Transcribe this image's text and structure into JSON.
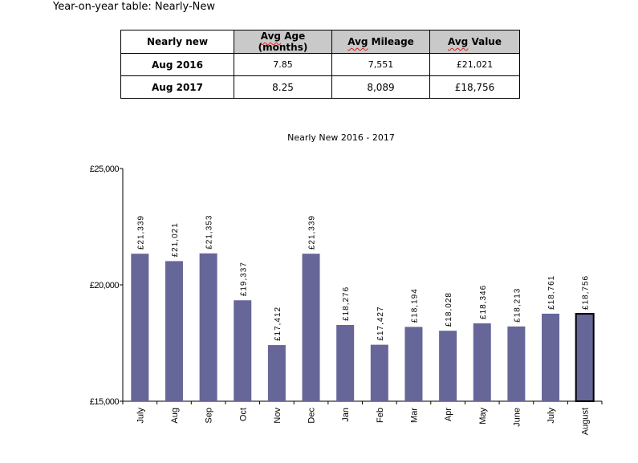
{
  "page_title": "Year-on-year table: Nearly-New",
  "table": {
    "headers": [
      "Nearly new",
      "Avg Age (months)",
      "Avg Mileage",
      "Avg Value"
    ],
    "rows": [
      [
        "Aug 2016",
        "7.85",
        "7,551",
        "£21,021"
      ],
      [
        "Aug 2017",
        "8.25",
        "8,089",
        "£18,756"
      ]
    ]
  },
  "chart_data": {
    "type": "bar",
    "title": "Nearly New 2016 - 2017",
    "xlabel": "",
    "ylabel": "",
    "ylim": [
      15000,
      25000
    ],
    "yticks": [
      15000,
      20000,
      25000
    ],
    "ytick_labels": [
      "£15,000",
      "£20,000",
      "£25,000"
    ],
    "categories": [
      "July",
      "Aug",
      "Sep",
      "Oct",
      "Nov",
      "Dec",
      "Jan",
      "Feb",
      "Mar",
      "Apr",
      "May",
      "June",
      "July",
      "August"
    ],
    "values": [
      21339,
      21021,
      21353,
      19337,
      17412,
      21339,
      18276,
      17427,
      18194,
      18028,
      18346,
      18213,
      18761,
      18756
    ],
    "data_labels": [
      "£21,339",
      "£21,021",
      "£21,353",
      "£19,337",
      "£17,412",
      "£21,339",
      "£18,276",
      "£17,427",
      "£18,194",
      "£18,028",
      "£18,346",
      "£18,213",
      "£18,761",
      "£18,756"
    ],
    "highlighted_index": 13,
    "bar_color": "#666699",
    "grid": false,
    "legend": "none"
  }
}
